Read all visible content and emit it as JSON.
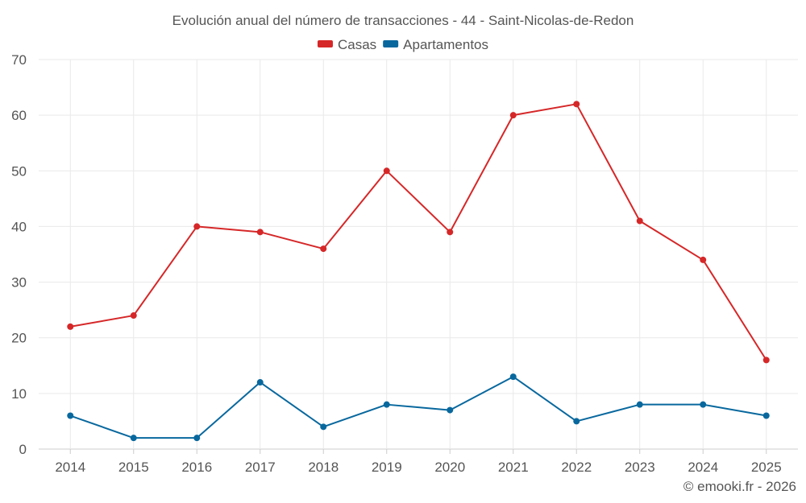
{
  "chart_data": {
    "type": "line",
    "title": "Evolución anual del número de transacciones - 44 - Saint-Nicolas-de-Redon",
    "xlabel": "",
    "ylabel": "",
    "categories": [
      "2014",
      "2015",
      "2016",
      "2017",
      "2018",
      "2019",
      "2020",
      "2021",
      "2022",
      "2023",
      "2024",
      "2025"
    ],
    "ylim": [
      0,
      70
    ],
    "yticks": [
      0,
      10,
      20,
      30,
      40,
      50,
      60,
      70
    ],
    "grid": true,
    "legend_position": "top-center",
    "series": [
      {
        "name": "Casas",
        "color": "#d62728",
        "values": [
          22,
          24,
          40,
          39,
          36,
          50,
          39,
          60,
          62,
          41,
          34,
          16
        ]
      },
      {
        "name": "Apartamentos",
        "color": "#08689e",
        "values": [
          6,
          2,
          2,
          12,
          4,
          8,
          7,
          13,
          5,
          8,
          8,
          6
        ]
      }
    ]
  },
  "credit": "© emooki.fr - 2026"
}
